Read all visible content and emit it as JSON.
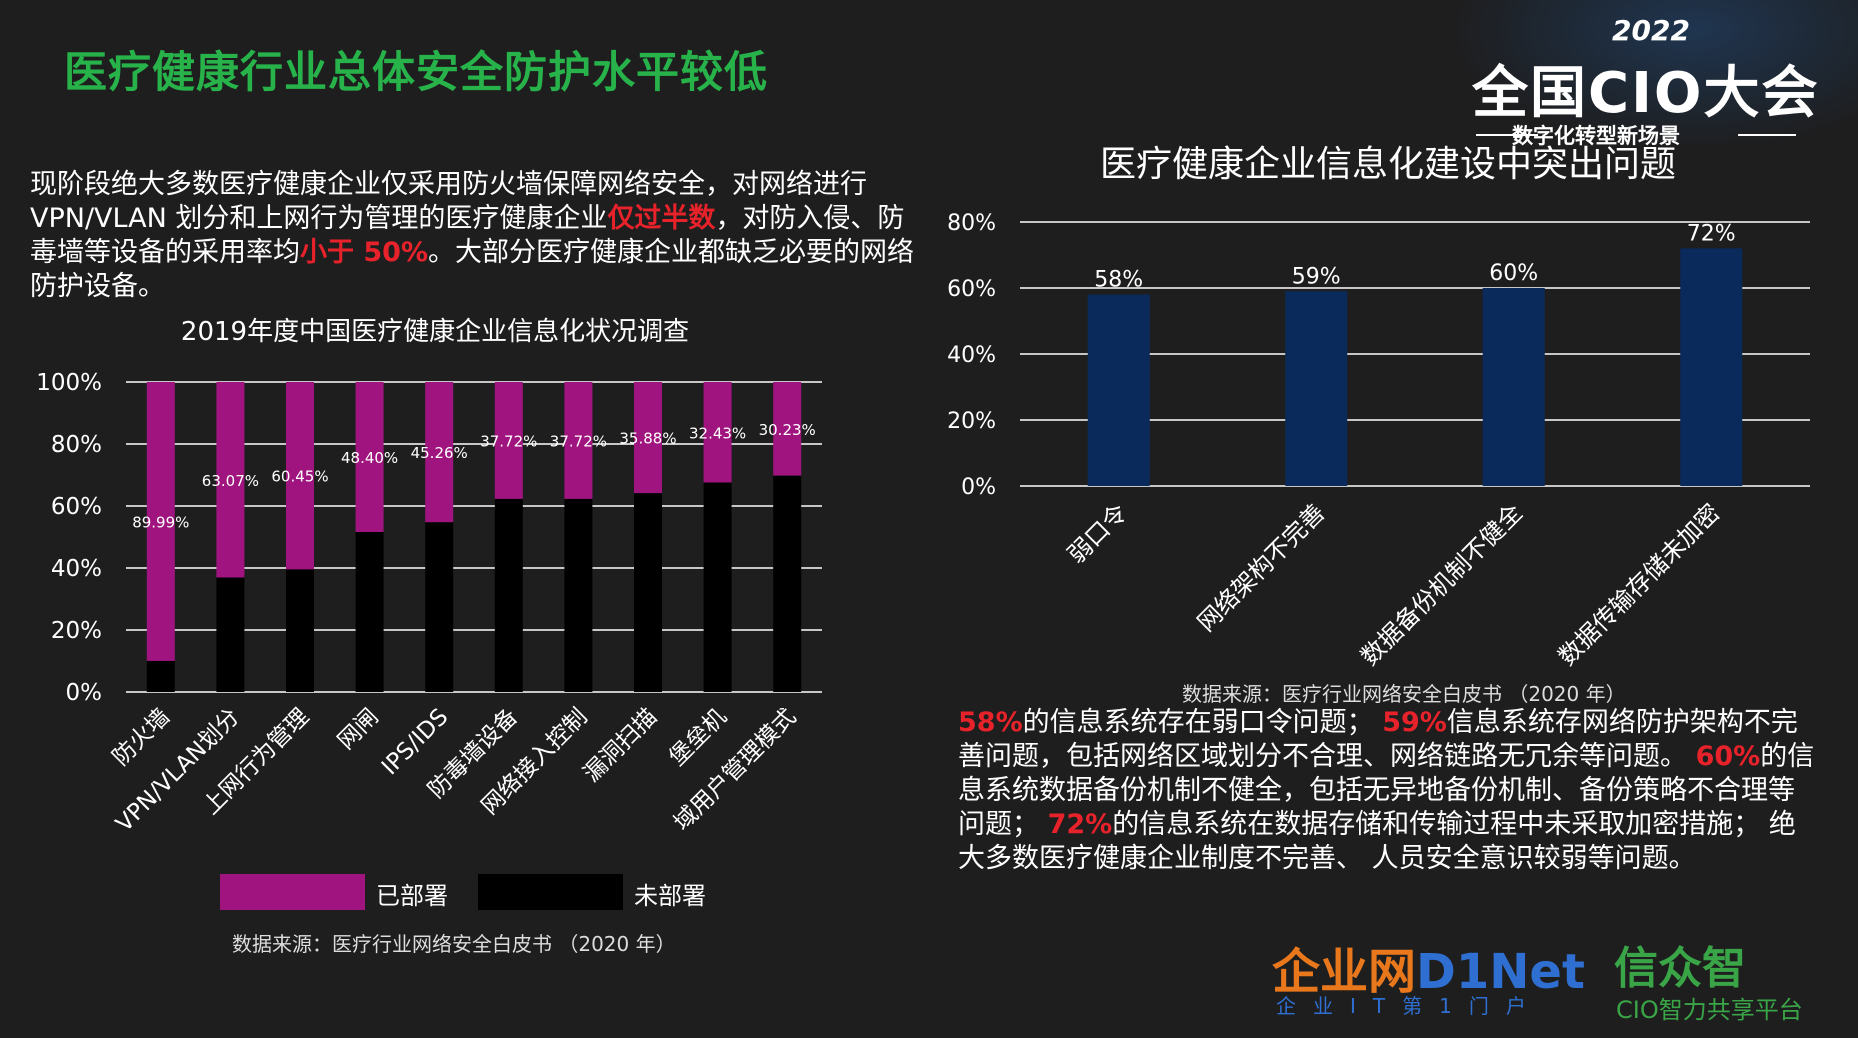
{
  "title": "医疗健康行业总体安全防护水平较低",
  "intro": {
    "p1": "现阶段绝大多数医疗健康企业仅采用防火墙保障网络安全，对网络进行VPN/VLAN 划分和上网行为管理的医疗健康企业",
    "h1": "仅过半数",
    "p2": "，对防入侵、防毒墙等设备的采用率均",
    "h2": "小于 50%",
    "p3": "。大部分医疗健康企业都缺乏必要的网络防护设备。"
  },
  "logo": {
    "year": "2022",
    "main": "全国CIO大会",
    "sub": "数字化转型新场景"
  },
  "colors": {
    "deployed": "#a0147f",
    "not_deployed": "#000000",
    "bar_blue": "#0b2a5c",
    "accent_red": "#e8222a",
    "title_green": "#27b24a"
  },
  "chart_data": [
    {
      "type": "bar",
      "stacked": true,
      "title": "2019年度中国医疗健康企业信息化状况调查",
      "categories": [
        "防火墙",
        "VPN/VLAN划分",
        "上网行为管理",
        "网闸",
        "IPS/IDS",
        "防毒墙设备",
        "网络接入控制",
        "漏洞扫描",
        "堡垒机",
        "域用户管理模式"
      ],
      "series": [
        {
          "name": "已部署",
          "values": [
            89.99,
            63.07,
            60.45,
            48.4,
            45.26,
            37.72,
            37.72,
            35.88,
            32.43,
            30.23
          ]
        },
        {
          "name": "未部署",
          "values": [
            10.01,
            36.93,
            39.55,
            51.6,
            54.74,
            62.28,
            62.28,
            64.12,
            67.57,
            69.77
          ]
        }
      ],
      "data_labels": [
        "89.99%",
        "63.07%",
        "60.45%",
        "48.40%",
        "45.26%",
        "37.72%",
        "37.72%",
        "35.88%",
        "32.43%",
        "30.23%"
      ],
      "yticks": [
        "0%",
        "20%",
        "40%",
        "60%",
        "80%",
        "100%"
      ],
      "ylim": [
        0,
        100
      ],
      "grid": true,
      "legend_position": "bottom",
      "source": "数据来源：医疗行业网络安全白皮书 （2020 年）"
    },
    {
      "type": "bar",
      "title": "医疗健康企业信息化建设中突出问题",
      "categories": [
        "弱口令",
        "网络架构不完善",
        "数据备份机制不健全",
        "数据传输存储未加密"
      ],
      "values": [
        58,
        59,
        60,
        72
      ],
      "data_labels": [
        "58%",
        "59%",
        "60%",
        "72%"
      ],
      "yticks": [
        "0%",
        "20%",
        "40%",
        "60%",
        "80%"
      ],
      "ylim": [
        0,
        80
      ],
      "grid": true,
      "source": "数据来源：医疗行业网络安全白皮书 （2020 年）"
    }
  ],
  "summary": {
    "v1": "58%",
    "t1": "的信息系统存在弱口令问题；",
    "v2": "59%",
    "t2": "信息系统存网络防护架构不完善问题，包括网络区域划分不合理、网络链路无冗余等问题。",
    "v3": "60%",
    "t3": "的信息系统数据备份机制不健全，包括无异地备份机制、备份策略不合理等问题；",
    "v4": "72%",
    "t4": "的信息系统在数据存储和传输过程中未采取加密措施； 绝大多数医疗健康企业制度不完善、 人员安全意识较弱等问题。"
  },
  "footer": {
    "d1_a": "企业网",
    "d1_b": "D1Net",
    "d1_sub": "企业IT第1门户",
    "xz": "信众智",
    "xz_sub": "CIO智力共享平台"
  }
}
